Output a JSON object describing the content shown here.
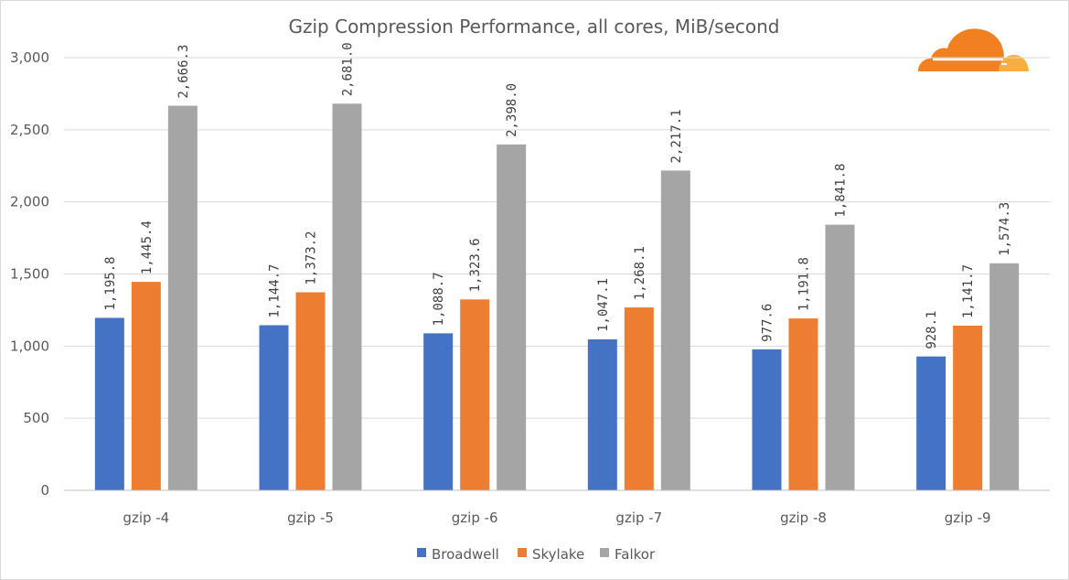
{
  "logo": {
    "name": "cloudflare-logo",
    "colors": {
      "primary": "#f38020",
      "secondary": "#faae40"
    }
  },
  "chart_data": {
    "type": "bar",
    "title": "Gzip Compression Performance, all cores, MiB/second",
    "xlabel": "",
    "ylabel": "",
    "ylim": [
      0,
      3000
    ],
    "yticks": [
      0,
      500,
      1000,
      1500,
      2000,
      2500,
      3000
    ],
    "ytick_labels": [
      "0",
      "500",
      "1,000",
      "1,500",
      "2,000",
      "2,500",
      "3,000"
    ],
    "grid": true,
    "legend_position": "bottom",
    "categories": [
      "gzip -4",
      "gzip -5",
      "gzip -6",
      "gzip -7",
      "gzip -8",
      "gzip -9"
    ],
    "series": [
      {
        "name": "Broadwell",
        "color": "#4472c4",
        "values": [
          1195.8,
          1144.7,
          1088.7,
          1047.1,
          977.6,
          928.1
        ],
        "labels": [
          "1,195.8",
          "1,144.7",
          "1,088.7",
          "1,047.1",
          "977.6",
          "928.1"
        ]
      },
      {
        "name": "Skylake",
        "color": "#ed7d31",
        "values": [
          1445.4,
          1373.2,
          1323.6,
          1268.1,
          1191.8,
          1141.7
        ],
        "labels": [
          "1,445.4",
          "1,373.2",
          "1,323.6",
          "1,268.1",
          "1,191.8",
          "1,141.7"
        ]
      },
      {
        "name": "Falkor",
        "color": "#a5a5a5",
        "values": [
          2666.3,
          2681.0,
          2398.0,
          2217.1,
          1841.8,
          1574.3
        ],
        "labels": [
          "2,666.3",
          "2,681.0",
          "2,398.0",
          "2,217.1",
          "1,841.8",
          "1,574.3"
        ]
      }
    ]
  }
}
